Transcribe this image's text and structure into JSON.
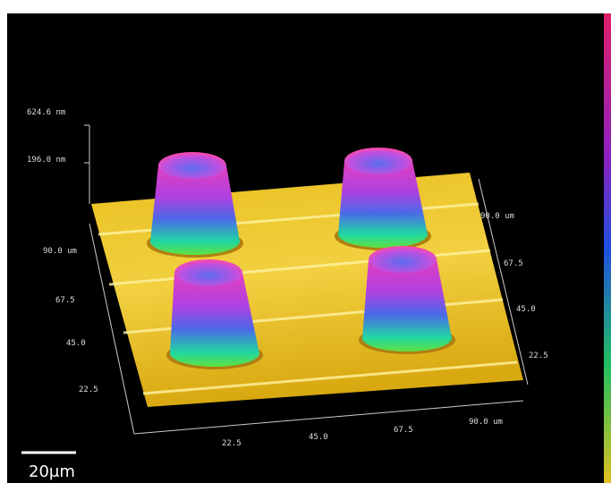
{
  "z_axis": {
    "labels": [
      "624.6 nm",
      "196.0 nm"
    ]
  },
  "y_axis_left": {
    "labels": [
      "90.0 um",
      "67.5",
      "45.0",
      "22.5"
    ]
  },
  "y_axis_right": {
    "labels": [
      "90.0 um",
      "67.5",
      "45.0",
      "22.5"
    ]
  },
  "x_axis": {
    "labels": [
      "22.5",
      "45.0",
      "67.5",
      "90.0 um"
    ]
  },
  "scale_bar": {
    "label": "20μm"
  }
}
